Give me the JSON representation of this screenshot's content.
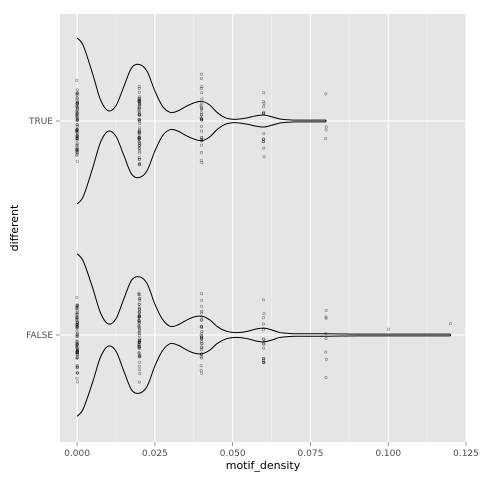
{
  "chart_data": {
    "type": "violin",
    "xlabel": "motif_density",
    "ylabel": "different",
    "xlim": [
      -0.0055,
      0.125
    ],
    "x_ticks": [
      0.0,
      0.025,
      0.05,
      0.075,
      0.1,
      0.125
    ],
    "x_tick_labels": [
      "0.000",
      "0.025",
      "0.050",
      "0.075",
      "0.100",
      "0.125"
    ],
    "categories": [
      "TRUE",
      "FALSE"
    ],
    "grid": true,
    "series": [
      {
        "category": "TRUE",
        "violin": {
          "x": [
            0.0,
            0.002,
            0.005,
            0.0075,
            0.01,
            0.0125,
            0.015,
            0.0175,
            0.02,
            0.0225,
            0.025,
            0.0275,
            0.03,
            0.0325,
            0.035,
            0.0375,
            0.04,
            0.0425,
            0.045,
            0.0475,
            0.05,
            0.0525,
            0.055,
            0.0575,
            0.06,
            0.0625,
            0.065,
            0.0675,
            0.07,
            0.075,
            0.08
          ],
          "half_width": [
            0.97,
            0.88,
            0.55,
            0.25,
            0.12,
            0.18,
            0.4,
            0.62,
            0.66,
            0.58,
            0.35,
            0.17,
            0.1,
            0.12,
            0.17,
            0.21,
            0.23,
            0.19,
            0.1,
            0.04,
            0.02,
            0.025,
            0.04,
            0.06,
            0.07,
            0.05,
            0.025,
            0.015,
            0.01,
            0.01,
            0.01
          ]
        },
        "points": [
          {
            "x": 0.0,
            "n": 70,
            "spread": 0.6
          },
          {
            "x": 0.02,
            "n": 60,
            "spread": 0.6
          },
          {
            "x": 0.04,
            "n": 30,
            "spread": 0.6
          },
          {
            "x": 0.06,
            "n": 14,
            "spread": 0.6
          },
          {
            "x": 0.08,
            "n": 4,
            "spread": 0.6
          }
        ]
      },
      {
        "category": "FALSE",
        "violin": {
          "x": [
            0.0,
            0.002,
            0.005,
            0.0075,
            0.01,
            0.0125,
            0.015,
            0.0175,
            0.02,
            0.0225,
            0.025,
            0.0275,
            0.03,
            0.0325,
            0.035,
            0.0375,
            0.04,
            0.0425,
            0.045,
            0.0475,
            0.05,
            0.0525,
            0.055,
            0.0575,
            0.06,
            0.0625,
            0.065,
            0.0675,
            0.07,
            0.075,
            0.08,
            0.085,
            0.09,
            0.1,
            0.11,
            0.12
          ],
          "half_width": [
            0.95,
            0.86,
            0.55,
            0.26,
            0.13,
            0.19,
            0.42,
            0.64,
            0.68,
            0.6,
            0.36,
            0.18,
            0.1,
            0.12,
            0.17,
            0.21,
            0.22,
            0.18,
            0.1,
            0.05,
            0.03,
            0.03,
            0.045,
            0.07,
            0.08,
            0.06,
            0.03,
            0.02,
            0.015,
            0.015,
            0.015,
            0.012,
            0.01,
            0.01,
            0.01,
            0.01
          ]
        },
        "points": [
          {
            "x": 0.0,
            "n": 70,
            "spread": 0.6
          },
          {
            "x": 0.02,
            "n": 60,
            "spread": 0.6
          },
          {
            "x": 0.04,
            "n": 32,
            "spread": 0.6
          },
          {
            "x": 0.06,
            "n": 16,
            "spread": 0.6
          },
          {
            "x": 0.08,
            "n": 8,
            "spread": 0.6
          },
          {
            "x": 0.1,
            "n": 1,
            "spread": 0.2
          },
          {
            "x": 0.12,
            "n": 1,
            "spread": 0.2
          }
        ]
      }
    ],
    "colors": {
      "panel": "#e5e5e5",
      "grid_major": "#ffffff",
      "grid_minor": "#f2f2f2",
      "violin_line": "#000000",
      "point": "#000000"
    }
  }
}
